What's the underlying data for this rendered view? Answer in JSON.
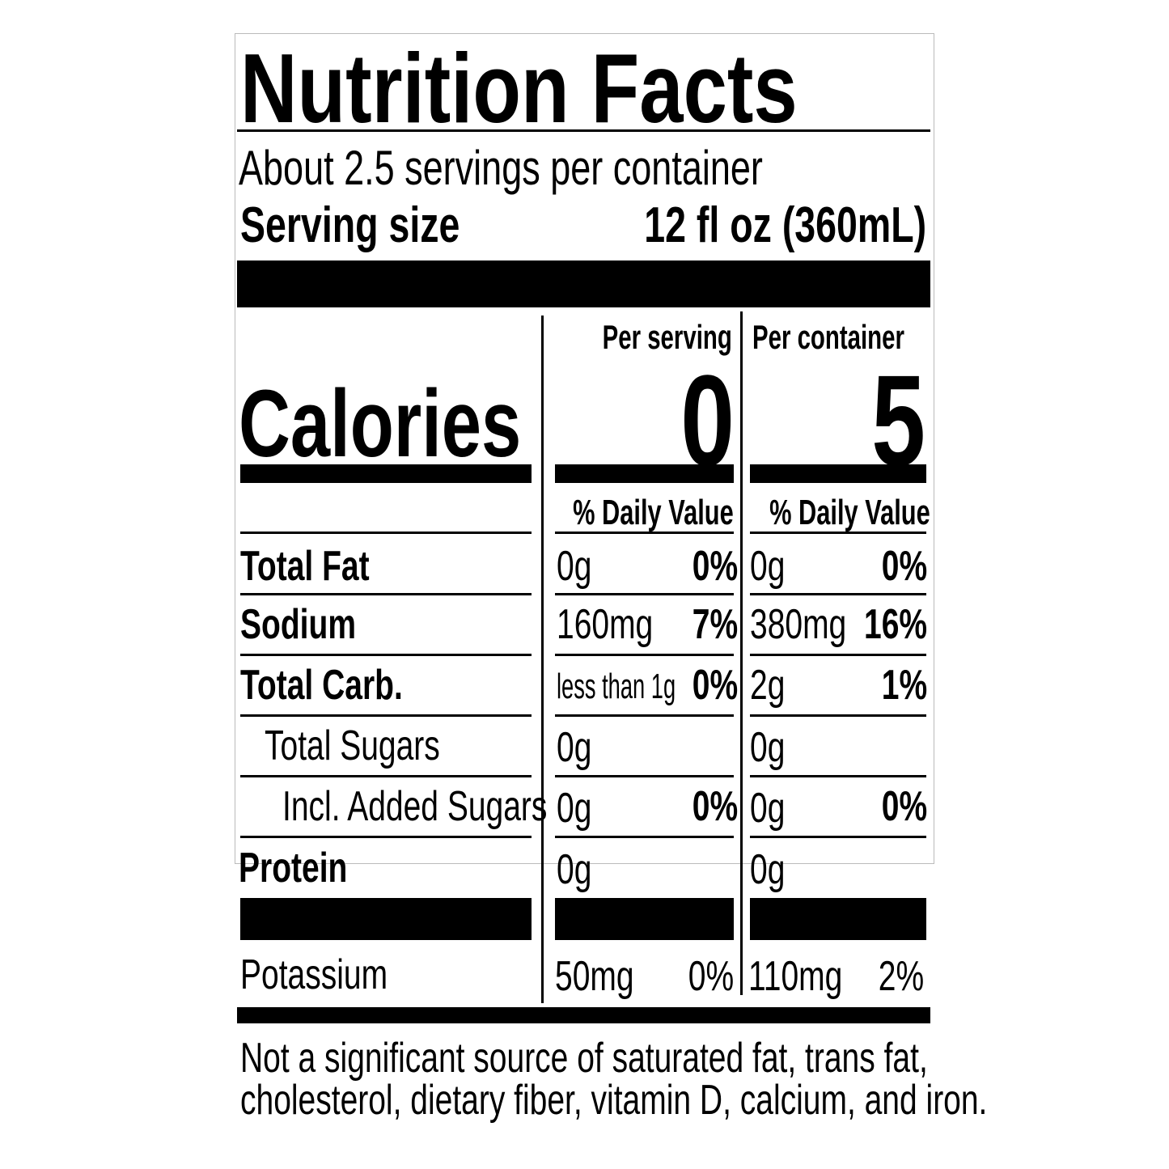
{
  "title": "Nutrition Facts",
  "servings_per_container": "About 2.5 servings per container",
  "serving_size": {
    "label": "Serving size",
    "value": "12 fl oz (360mL)"
  },
  "columns": {
    "per_serving": {
      "header": "Per serving",
      "calories": "0",
      "dv_header": "% Daily Value"
    },
    "per_container": {
      "header": "Per container",
      "calories": "5",
      "dv_header": "% Daily Value"
    }
  },
  "calories_label": "Calories",
  "nutrients": [
    {
      "name": "Total Fat",
      "serving_amount": "0g",
      "serving_dv": "0%",
      "container_amount": "0g",
      "container_dv": "0%"
    },
    {
      "name": "Sodium",
      "serving_amount": "160mg",
      "serving_dv": "7%",
      "container_amount": "380mg",
      "container_dv": "16%"
    },
    {
      "name": "Total Carb.",
      "serving_amount": "less than 1g",
      "serving_dv": "0%",
      "container_amount": "2g",
      "container_dv": "1%"
    },
    {
      "name": "Total Sugars",
      "serving_amount": "0g",
      "serving_dv": "",
      "container_amount": "0g",
      "container_dv": ""
    },
    {
      "name": "Incl. Added Sugars",
      "serving_amount": "0g",
      "serving_dv": "0%",
      "container_amount": "0g",
      "container_dv": "0%"
    },
    {
      "name": "Protein",
      "serving_amount": "0g",
      "serving_dv": "",
      "container_amount": "0g",
      "container_dv": ""
    },
    {
      "name": "Potassium",
      "serving_amount": "50mg",
      "serving_dv": "0%",
      "container_amount": "110mg",
      "container_dv": "2%"
    }
  ],
  "footnote": [
    "Not a significant source of saturated fat, trans fat,",
    "cholesterol, dietary fiber, vitamin D, calcium, and iron."
  ]
}
